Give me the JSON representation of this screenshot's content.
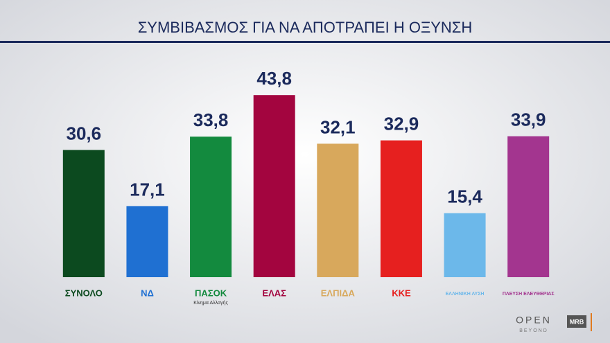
{
  "chart_data": {
    "type": "bar",
    "title": "ΣΥΜΒΙΒΑΣΜΟΣ ΓΙΑ ΝΑ ΑΠΟΤΡΑΠΕΙ Η ΟΞΥΝΣΗ",
    "categories": [
      "ΣΥΝΟΛΟ",
      "ΝΔ",
      "ΠΑΣΟΚ",
      "ΕΛΑΣ",
      "ΕΛΠΙΔΑ",
      "ΚΚΕ",
      "ΕΛΛΗΝΙΚΗ ΛΥΣΗ",
      "ΠΛΕΥΣΗ ΕΛΕΥΘΕΡΙΑΣ"
    ],
    "category_notes": [
      null,
      null,
      "Κίνημα Αλλαγής",
      null,
      null,
      null,
      null,
      null
    ],
    "values": [
      30.6,
      17.1,
      33.8,
      43.8,
      32.1,
      32.9,
      15.4,
      33.9
    ],
    "value_labels": [
      "30,6",
      "17,1",
      "33,8",
      "43,8",
      "32,1",
      "32,9",
      "15,4",
      "33,9"
    ],
    "colors": [
      "#0c4a1f",
      "#1f70d2",
      "#138a3e",
      "#a3053f",
      "#d8a85c",
      "#e6201f",
      "#6cb8ea",
      "#a3358f"
    ],
    "ylim": [
      0,
      45
    ]
  },
  "footer": {
    "brand": "OPEN",
    "brand_sub": "BEYOND",
    "source": "MRB"
  }
}
